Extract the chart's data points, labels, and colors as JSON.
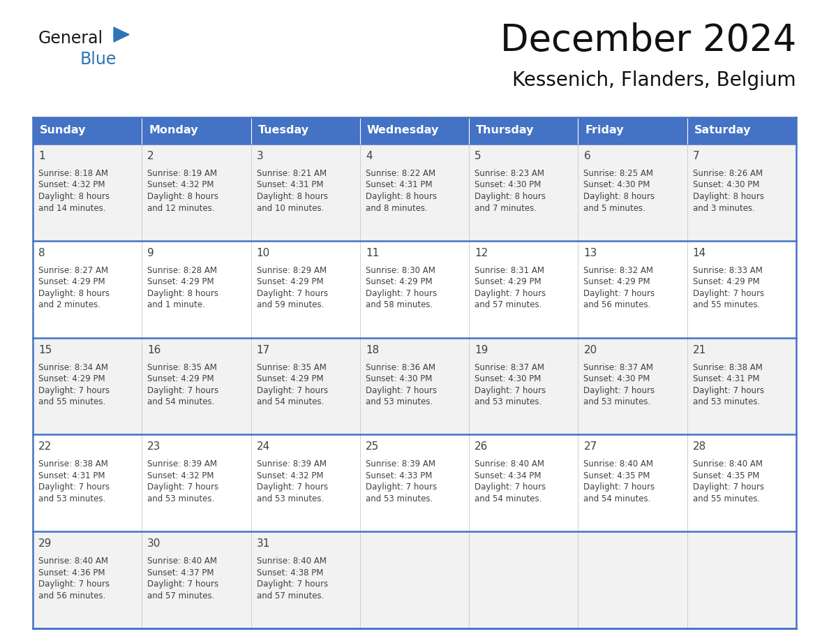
{
  "title": "December 2024",
  "subtitle": "Kessenich, Flanders, Belgium",
  "header_color": "#4472C4",
  "header_text_color": "#FFFFFF",
  "day_names": [
    "Sunday",
    "Monday",
    "Tuesday",
    "Wednesday",
    "Thursday",
    "Friday",
    "Saturday"
  ],
  "cell_bg_even": "#F2F2F2",
  "cell_bg_odd": "#FFFFFF",
  "border_color": "#4472C4",
  "text_color": "#404040",
  "days": [
    {
      "day": 1,
      "col": 0,
      "row": 0,
      "sunrise": "8:18 AM",
      "sunset": "4:32 PM",
      "daylight": "8 hours",
      "daylight2": "and 14 minutes."
    },
    {
      "day": 2,
      "col": 1,
      "row": 0,
      "sunrise": "8:19 AM",
      "sunset": "4:32 PM",
      "daylight": "8 hours",
      "daylight2": "and 12 minutes."
    },
    {
      "day": 3,
      "col": 2,
      "row": 0,
      "sunrise": "8:21 AM",
      "sunset": "4:31 PM",
      "daylight": "8 hours",
      "daylight2": "and 10 minutes."
    },
    {
      "day": 4,
      "col": 3,
      "row": 0,
      "sunrise": "8:22 AM",
      "sunset": "4:31 PM",
      "daylight": "8 hours",
      "daylight2": "and 8 minutes."
    },
    {
      "day": 5,
      "col": 4,
      "row": 0,
      "sunrise": "8:23 AM",
      "sunset": "4:30 PM",
      "daylight": "8 hours",
      "daylight2": "and 7 minutes."
    },
    {
      "day": 6,
      "col": 5,
      "row": 0,
      "sunrise": "8:25 AM",
      "sunset": "4:30 PM",
      "daylight": "8 hours",
      "daylight2": "and 5 minutes."
    },
    {
      "day": 7,
      "col": 6,
      "row": 0,
      "sunrise": "8:26 AM",
      "sunset": "4:30 PM",
      "daylight": "8 hours",
      "daylight2": "and 3 minutes."
    },
    {
      "day": 8,
      "col": 0,
      "row": 1,
      "sunrise": "8:27 AM",
      "sunset": "4:29 PM",
      "daylight": "8 hours",
      "daylight2": "and 2 minutes."
    },
    {
      "day": 9,
      "col": 1,
      "row": 1,
      "sunrise": "8:28 AM",
      "sunset": "4:29 PM",
      "daylight": "8 hours",
      "daylight2": "and 1 minute."
    },
    {
      "day": 10,
      "col": 2,
      "row": 1,
      "sunrise": "8:29 AM",
      "sunset": "4:29 PM",
      "daylight": "7 hours",
      "daylight2": "and 59 minutes."
    },
    {
      "day": 11,
      "col": 3,
      "row": 1,
      "sunrise": "8:30 AM",
      "sunset": "4:29 PM",
      "daylight": "7 hours",
      "daylight2": "and 58 minutes."
    },
    {
      "day": 12,
      "col": 4,
      "row": 1,
      "sunrise": "8:31 AM",
      "sunset": "4:29 PM",
      "daylight": "7 hours",
      "daylight2": "and 57 minutes."
    },
    {
      "day": 13,
      "col": 5,
      "row": 1,
      "sunrise": "8:32 AM",
      "sunset": "4:29 PM",
      "daylight": "7 hours",
      "daylight2": "and 56 minutes."
    },
    {
      "day": 14,
      "col": 6,
      "row": 1,
      "sunrise": "8:33 AM",
      "sunset": "4:29 PM",
      "daylight": "7 hours",
      "daylight2": "and 55 minutes."
    },
    {
      "day": 15,
      "col": 0,
      "row": 2,
      "sunrise": "8:34 AM",
      "sunset": "4:29 PM",
      "daylight": "7 hours",
      "daylight2": "and 55 minutes."
    },
    {
      "day": 16,
      "col": 1,
      "row": 2,
      "sunrise": "8:35 AM",
      "sunset": "4:29 PM",
      "daylight": "7 hours",
      "daylight2": "and 54 minutes."
    },
    {
      "day": 17,
      "col": 2,
      "row": 2,
      "sunrise": "8:35 AM",
      "sunset": "4:29 PM",
      "daylight": "7 hours",
      "daylight2": "and 54 minutes."
    },
    {
      "day": 18,
      "col": 3,
      "row": 2,
      "sunrise": "8:36 AM",
      "sunset": "4:30 PM",
      "daylight": "7 hours",
      "daylight2": "and 53 minutes."
    },
    {
      "day": 19,
      "col": 4,
      "row": 2,
      "sunrise": "8:37 AM",
      "sunset": "4:30 PM",
      "daylight": "7 hours",
      "daylight2": "and 53 minutes."
    },
    {
      "day": 20,
      "col": 5,
      "row": 2,
      "sunrise": "8:37 AM",
      "sunset": "4:30 PM",
      "daylight": "7 hours",
      "daylight2": "and 53 minutes."
    },
    {
      "day": 21,
      "col": 6,
      "row": 2,
      "sunrise": "8:38 AM",
      "sunset": "4:31 PM",
      "daylight": "7 hours",
      "daylight2": "and 53 minutes."
    },
    {
      "day": 22,
      "col": 0,
      "row": 3,
      "sunrise": "8:38 AM",
      "sunset": "4:31 PM",
      "daylight": "7 hours",
      "daylight2": "and 53 minutes."
    },
    {
      "day": 23,
      "col": 1,
      "row": 3,
      "sunrise": "8:39 AM",
      "sunset": "4:32 PM",
      "daylight": "7 hours",
      "daylight2": "and 53 minutes."
    },
    {
      "day": 24,
      "col": 2,
      "row": 3,
      "sunrise": "8:39 AM",
      "sunset": "4:32 PM",
      "daylight": "7 hours",
      "daylight2": "and 53 minutes."
    },
    {
      "day": 25,
      "col": 3,
      "row": 3,
      "sunrise": "8:39 AM",
      "sunset": "4:33 PM",
      "daylight": "7 hours",
      "daylight2": "and 53 minutes."
    },
    {
      "day": 26,
      "col": 4,
      "row": 3,
      "sunrise": "8:40 AM",
      "sunset": "4:34 PM",
      "daylight": "7 hours",
      "daylight2": "and 54 minutes."
    },
    {
      "day": 27,
      "col": 5,
      "row": 3,
      "sunrise": "8:40 AM",
      "sunset": "4:35 PM",
      "daylight": "7 hours",
      "daylight2": "and 54 minutes."
    },
    {
      "day": 28,
      "col": 6,
      "row": 3,
      "sunrise": "8:40 AM",
      "sunset": "4:35 PM",
      "daylight": "7 hours",
      "daylight2": "and 55 minutes."
    },
    {
      "day": 29,
      "col": 0,
      "row": 4,
      "sunrise": "8:40 AM",
      "sunset": "4:36 PM",
      "daylight": "7 hours",
      "daylight2": "and 56 minutes."
    },
    {
      "day": 30,
      "col": 1,
      "row": 4,
      "sunrise": "8:40 AM",
      "sunset": "4:37 PM",
      "daylight": "7 hours",
      "daylight2": "and 57 minutes."
    },
    {
      "day": 31,
      "col": 2,
      "row": 4,
      "sunrise": "8:40 AM",
      "sunset": "4:38 PM",
      "daylight": "7 hours",
      "daylight2": "and 57 minutes."
    }
  ],
  "num_rows": 5,
  "logo_general_color": "#1a1a1a",
  "logo_blue_color": "#2E75B6",
  "triangle_color": "#2E75B6"
}
